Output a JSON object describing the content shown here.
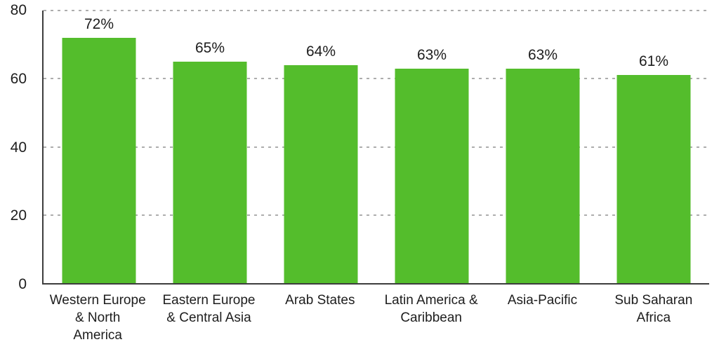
{
  "chart_data": {
    "type": "bar",
    "title": "",
    "xlabel": "",
    "ylabel": "",
    "categories": [
      "Western Europe & North America",
      "Eastern Europe & Central Asia",
      "Arab States",
      "Latin America & Caribbean",
      "Asia-Pacific",
      "Sub Saharan Africa"
    ],
    "category_display": [
      "Western Europe\n& North\nAmerica",
      "Eastern Europe\n& Central Asia",
      "Arab States",
      "Latin America &\nCaribbean",
      "Asia-Pacific",
      "Sub Saharan\nAfrica"
    ],
    "values": [
      72,
      65,
      64,
      63,
      63,
      61
    ],
    "value_labels": [
      "72%",
      "65%",
      "64%",
      "63%",
      "63%",
      "61%"
    ],
    "ylim": [
      0,
      80
    ],
    "yticks": [
      0,
      20,
      40,
      60,
      80
    ],
    "grid": "horizontal-dashed",
    "legend": "none",
    "colors": {
      "bar": "#54BD2C",
      "axis": "#3D3D3D",
      "gridline": "#ADADAD",
      "text": "#1D1D1D"
    }
  }
}
